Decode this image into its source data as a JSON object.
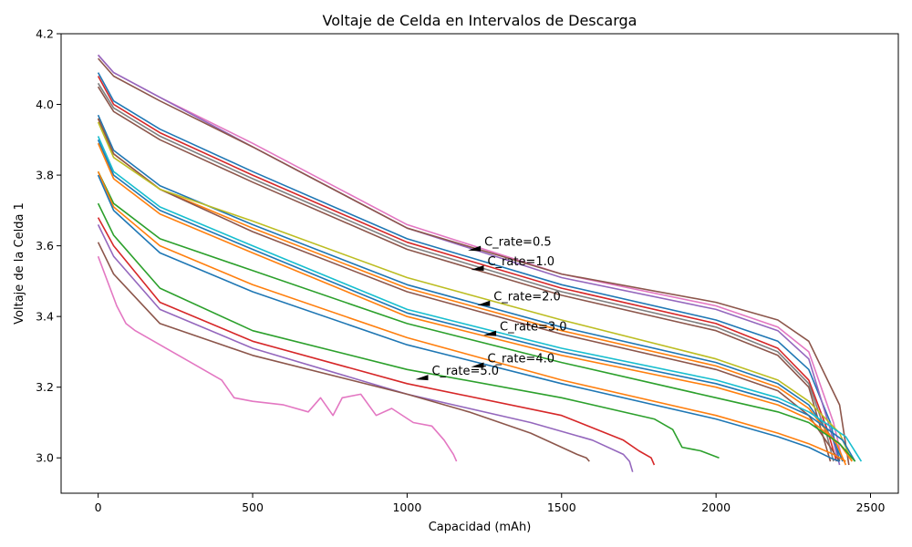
{
  "chart_data": {
    "type": "line",
    "title": "Voltaje de Celda en Intervalos de Descarga",
    "xlabel": "Capacidad (mAh)",
    "ylabel": "Voltaje de la Celda 1",
    "xlim": [
      -120,
      2590
    ],
    "ylim": [
      2.9,
      4.2
    ],
    "xticks": [
      0,
      500,
      1000,
      1500,
      2000,
      2500
    ],
    "yticks": [
      3.0,
      3.2,
      3.4,
      3.6,
      3.8,
      4.0,
      4.2
    ],
    "grid": false,
    "legend": "none",
    "series_colors": [
      "#1f77b4",
      "#ff7f0e",
      "#2ca02c",
      "#d62728",
      "#9467bd",
      "#8c564b",
      "#e377c2",
      "#7f7f7f",
      "#bcbd22",
      "#17becf"
    ],
    "series": [
      {
        "color": "#1f77b4",
        "points": [
          [
            0,
            4.09
          ],
          [
            50,
            4.01
          ],
          [
            200,
            3.93
          ],
          [
            500,
            3.81
          ],
          [
            1000,
            3.62
          ],
          [
            1500,
            3.49
          ],
          [
            2000,
            3.39
          ],
          [
            2200,
            3.33
          ],
          [
            2300,
            3.25
          ],
          [
            2370,
            3.1
          ],
          [
            2400,
            2.99
          ]
        ]
      },
      {
        "color": "#d62728",
        "points": [
          [
            0,
            4.08
          ],
          [
            50,
            4.0
          ],
          [
            200,
            3.92
          ],
          [
            500,
            3.8
          ],
          [
            1000,
            3.61
          ],
          [
            1500,
            3.48
          ],
          [
            2000,
            3.38
          ],
          [
            2200,
            3.31
          ],
          [
            2300,
            3.22
          ],
          [
            2360,
            3.08
          ],
          [
            2390,
            2.99
          ]
        ]
      },
      {
        "color": "#8c564b",
        "points": [
          [
            0,
            4.05
          ],
          [
            50,
            3.98
          ],
          [
            200,
            3.9
          ],
          [
            500,
            3.78
          ],
          [
            1000,
            3.59
          ],
          [
            1500,
            3.46
          ],
          [
            2000,
            3.36
          ],
          [
            2200,
            3.29
          ],
          [
            2300,
            3.2
          ],
          [
            2350,
            3.05
          ],
          [
            2370,
            2.99
          ]
        ]
      },
      {
        "color": "#7f7f7f",
        "points": [
          [
            0,
            4.06
          ],
          [
            50,
            3.99
          ],
          [
            200,
            3.91
          ],
          [
            500,
            3.79
          ],
          [
            1000,
            3.6
          ],
          [
            1500,
            3.47
          ],
          [
            2000,
            3.37
          ],
          [
            2200,
            3.3
          ],
          [
            2300,
            3.21
          ],
          [
            2360,
            3.06
          ],
          [
            2380,
            2.99
          ]
        ]
      },
      {
        "color": "#e377c2",
        "points": [
          [
            0,
            4.14
          ],
          [
            50,
            4.09
          ],
          [
            200,
            4.02
          ],
          [
            500,
            3.89
          ],
          [
            1000,
            3.66
          ],
          [
            1500,
            3.52
          ],
          [
            2000,
            3.43
          ],
          [
            2200,
            3.37
          ],
          [
            2300,
            3.3
          ],
          [
            2380,
            3.1
          ],
          [
            2410,
            2.99
          ]
        ]
      },
      {
        "color": "#9467bd",
        "points": [
          [
            0,
            4.14
          ],
          [
            50,
            4.09
          ],
          [
            200,
            4.02
          ],
          [
            500,
            3.88
          ],
          [
            1000,
            3.65
          ],
          [
            1500,
            3.51
          ],
          [
            2000,
            3.42
          ],
          [
            2200,
            3.36
          ],
          [
            2300,
            3.28
          ],
          [
            2370,
            3.08
          ],
          [
            2400,
            2.98
          ]
        ]
      },
      {
        "color": "#8c564b",
        "points": [
          [
            0,
            4.13
          ],
          [
            50,
            4.08
          ],
          [
            200,
            4.01
          ],
          [
            500,
            3.88
          ],
          [
            1000,
            3.65
          ],
          [
            1500,
            3.52
          ],
          [
            2000,
            3.44
          ],
          [
            2200,
            3.39
          ],
          [
            2300,
            3.33
          ],
          [
            2400,
            3.15
          ],
          [
            2430,
            2.98
          ]
        ]
      },
      {
        "color": "#1f77b4",
        "points": [
          [
            0,
            3.97
          ],
          [
            50,
            3.87
          ],
          [
            200,
            3.77
          ],
          [
            500,
            3.66
          ],
          [
            1000,
            3.49
          ],
          [
            1500,
            3.37
          ],
          [
            2000,
            3.27
          ],
          [
            2200,
            3.21
          ],
          [
            2300,
            3.15
          ],
          [
            2380,
            3.05
          ],
          [
            2410,
            2.99
          ]
        ]
      },
      {
        "color": "#ff7f0e",
        "points": [
          [
            0,
            3.96
          ],
          [
            50,
            3.86
          ],
          [
            200,
            3.76
          ],
          [
            500,
            3.65
          ],
          [
            1000,
            3.48
          ],
          [
            1500,
            3.36
          ],
          [
            2000,
            3.26
          ],
          [
            2200,
            3.2
          ],
          [
            2300,
            3.14
          ],
          [
            2390,
            3.04
          ],
          [
            2420,
            2.98
          ]
        ]
      },
      {
        "color": "#8c564b",
        "points": [
          [
            0,
            3.96
          ],
          [
            50,
            3.86
          ],
          [
            200,
            3.76
          ],
          [
            500,
            3.64
          ],
          [
            1000,
            3.47
          ],
          [
            1500,
            3.35
          ],
          [
            2000,
            3.25
          ],
          [
            2200,
            3.19
          ],
          [
            2300,
            3.12
          ],
          [
            2370,
            3.03
          ],
          [
            2400,
            2.99
          ]
        ]
      },
      {
        "color": "#bcbd22",
        "points": [
          [
            0,
            3.95
          ],
          [
            50,
            3.85
          ],
          [
            200,
            3.76
          ],
          [
            500,
            3.67
          ],
          [
            1000,
            3.51
          ],
          [
            1500,
            3.39
          ],
          [
            2000,
            3.28
          ],
          [
            2200,
            3.22
          ],
          [
            2300,
            3.16
          ],
          [
            2400,
            3.07
          ],
          [
            2440,
            2.99
          ]
        ]
      },
      {
        "color": "#17becf",
        "points": [
          [
            0,
            3.91
          ],
          [
            50,
            3.81
          ],
          [
            200,
            3.71
          ],
          [
            500,
            3.6
          ],
          [
            1000,
            3.42
          ],
          [
            1500,
            3.31
          ],
          [
            2000,
            3.22
          ],
          [
            2200,
            3.17
          ],
          [
            2300,
            3.13
          ],
          [
            2420,
            3.06
          ],
          [
            2470,
            2.99
          ]
        ]
      },
      {
        "color": "#1f77b4",
        "points": [
          [
            0,
            3.9
          ],
          [
            50,
            3.8
          ],
          [
            200,
            3.7
          ],
          [
            500,
            3.59
          ],
          [
            1000,
            3.41
          ],
          [
            1500,
            3.3
          ],
          [
            2000,
            3.21
          ],
          [
            2200,
            3.16
          ],
          [
            2300,
            3.12
          ],
          [
            2410,
            3.05
          ],
          [
            2450,
            2.99
          ]
        ]
      },
      {
        "color": "#ff7f0e",
        "points": [
          [
            0,
            3.89
          ],
          [
            50,
            3.79
          ],
          [
            200,
            3.69
          ],
          [
            500,
            3.58
          ],
          [
            1000,
            3.4
          ],
          [
            1500,
            3.29
          ],
          [
            2000,
            3.2
          ],
          [
            2200,
            3.15
          ],
          [
            2300,
            3.11
          ],
          [
            2400,
            3.04
          ],
          [
            2440,
            2.99
          ]
        ]
      },
      {
        "color": "#2ca02c",
        "points": [
          [
            0,
            3.81
          ],
          [
            50,
            3.72
          ],
          [
            200,
            3.62
          ],
          [
            500,
            3.53
          ],
          [
            1000,
            3.38
          ],
          [
            1500,
            3.27
          ],
          [
            2000,
            3.17
          ],
          [
            2200,
            3.13
          ],
          [
            2300,
            3.1
          ],
          [
            2400,
            3.04
          ],
          [
            2450,
            2.99
          ]
        ]
      },
      {
        "color": "#ff7f0e",
        "points": [
          [
            0,
            3.81
          ],
          [
            50,
            3.71
          ],
          [
            200,
            3.6
          ],
          [
            500,
            3.49
          ],
          [
            1000,
            3.34
          ],
          [
            1500,
            3.22
          ],
          [
            2000,
            3.12
          ],
          [
            2200,
            3.07
          ],
          [
            2300,
            3.04
          ],
          [
            2380,
            3.01
          ],
          [
            2420,
            2.99
          ]
        ]
      },
      {
        "color": "#1f77b4",
        "points": [
          [
            0,
            3.8
          ],
          [
            50,
            3.7
          ],
          [
            200,
            3.58
          ],
          [
            500,
            3.47
          ],
          [
            1000,
            3.32
          ],
          [
            1500,
            3.21
          ],
          [
            2000,
            3.11
          ],
          [
            2200,
            3.06
          ],
          [
            2300,
            3.03
          ],
          [
            2370,
            3.0
          ],
          [
            2400,
            2.99
          ]
        ]
      },
      {
        "color": "#2ca02c",
        "points": [
          [
            0,
            3.72
          ],
          [
            50,
            3.63
          ],
          [
            200,
            3.48
          ],
          [
            500,
            3.36
          ],
          [
            1000,
            3.25
          ],
          [
            1500,
            3.17
          ],
          [
            1800,
            3.11
          ],
          [
            1860,
            3.08
          ],
          [
            1890,
            3.03
          ],
          [
            1950,
            3.02
          ],
          [
            2010,
            3.0
          ]
        ]
      },
      {
        "color": "#d62728",
        "points": [
          [
            0,
            3.68
          ],
          [
            50,
            3.6
          ],
          [
            200,
            3.44
          ],
          [
            500,
            3.33
          ],
          [
            1000,
            3.21
          ],
          [
            1500,
            3.12
          ],
          [
            1700,
            3.05
          ],
          [
            1750,
            3.02
          ],
          [
            1790,
            3.0
          ],
          [
            1800,
            2.98
          ]
        ]
      },
      {
        "color": "#9467bd",
        "points": [
          [
            0,
            3.66
          ],
          [
            50,
            3.57
          ],
          [
            200,
            3.42
          ],
          [
            500,
            3.31
          ],
          [
            1000,
            3.18
          ],
          [
            1400,
            3.1
          ],
          [
            1600,
            3.05
          ],
          [
            1700,
            3.01
          ],
          [
            1720,
            2.99
          ],
          [
            1730,
            2.96
          ]
        ]
      },
      {
        "color": "#8c564b",
        "points": [
          [
            0,
            3.61
          ],
          [
            50,
            3.52
          ],
          [
            200,
            3.38
          ],
          [
            500,
            3.29
          ],
          [
            1000,
            3.18
          ],
          [
            1200,
            3.13
          ],
          [
            1400,
            3.07
          ],
          [
            1500,
            3.03
          ],
          [
            1550,
            3.01
          ],
          [
            1580,
            3.0
          ],
          [
            1590,
            2.99
          ]
        ]
      },
      {
        "color": "#e377c2",
        "points": [
          [
            0,
            3.57
          ],
          [
            30,
            3.5
          ],
          [
            60,
            3.43
          ],
          [
            90,
            3.38
          ],
          [
            120,
            3.36
          ],
          [
            200,
            3.32
          ],
          [
            300,
            3.27
          ],
          [
            400,
            3.22
          ],
          [
            440,
            3.17
          ],
          [
            500,
            3.16
          ],
          [
            600,
            3.15
          ],
          [
            680,
            3.13
          ],
          [
            720,
            3.17
          ],
          [
            760,
            3.12
          ],
          [
            790,
            3.17
          ],
          [
            850,
            3.18
          ],
          [
            900,
            3.12
          ],
          [
            950,
            3.14
          ],
          [
            1020,
            3.1
          ],
          [
            1080,
            3.09
          ],
          [
            1120,
            3.05
          ],
          [
            1150,
            3.01
          ],
          [
            1160,
            2.99
          ]
        ]
      }
    ],
    "annotations": [
      {
        "text": "C_rate=0.5",
        "x": 1250,
        "y": 3.6
      },
      {
        "text": "C_rate=1.0",
        "x": 1260,
        "y": 3.545
      },
      {
        "text": "C_rate=2.0",
        "x": 1280,
        "y": 3.445
      },
      {
        "text": "C_rate=3.0",
        "x": 1300,
        "y": 3.36
      },
      {
        "text": "C_rate=4.0",
        "x": 1260,
        "y": 3.27
      },
      {
        "text": "C_rate=5.0",
        "x": 1080,
        "y": 3.235
      }
    ]
  }
}
